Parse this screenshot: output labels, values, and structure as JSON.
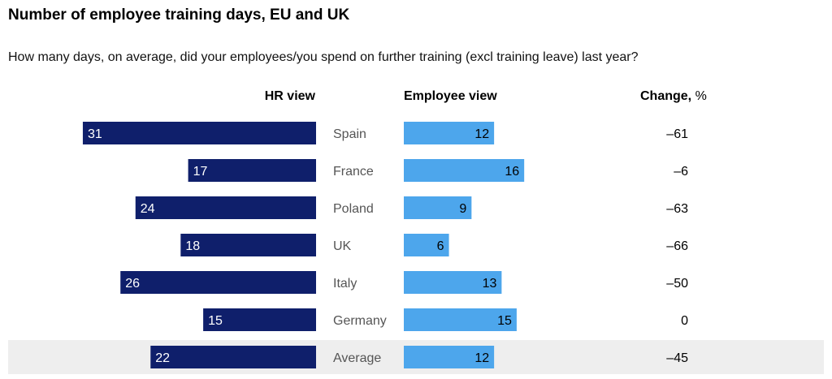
{
  "title": "Number of employee training days, EU and UK",
  "subtitle": "How many days, on average, did your employees/you spend on further training (excl training leave) last year?",
  "headers": {
    "hr": "HR view",
    "employee": "Employee view",
    "change_bold": "Change,",
    "change_unit": " %"
  },
  "colors": {
    "hr_bar": "#0f1f6b",
    "employee_bar": "#4da6ec",
    "highlight_row": "#eeeeee",
    "country_label": "#555555"
  },
  "chart_data": {
    "type": "bar",
    "categories": [
      "Spain",
      "France",
      "Poland",
      "UK",
      "Italy",
      "Germany",
      "Average"
    ],
    "series": [
      {
        "name": "HR view",
        "values": [
          31,
          17,
          24,
          18,
          26,
          15,
          22
        ]
      },
      {
        "name": "Employee view",
        "values": [
          12,
          16,
          9,
          6,
          13,
          15,
          12
        ]
      }
    ],
    "change": [
      "–61",
      "–6",
      "–63",
      "–66",
      "–50",
      "0",
      "–45"
    ],
    "highlight_category": "Average"
  }
}
